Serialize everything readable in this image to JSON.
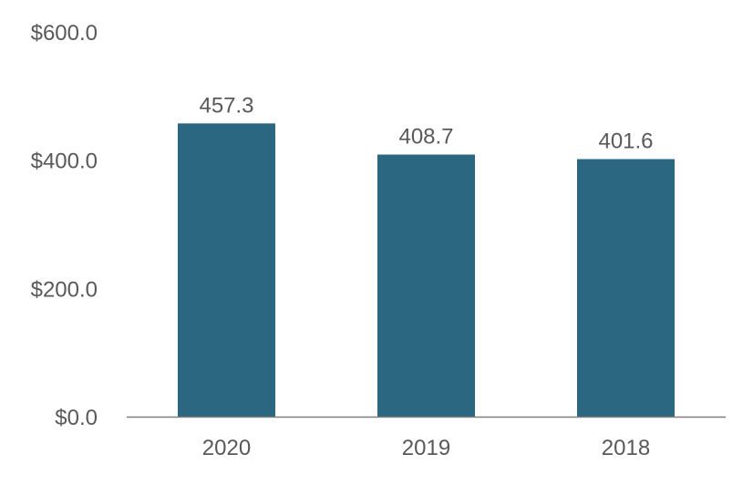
{
  "chart_data": {
    "type": "bar",
    "categories": [
      "2020",
      "2019",
      "2018"
    ],
    "values": [
      457.3,
      408.7,
      401.6
    ],
    "data_labels": [
      "457.3",
      "408.7",
      "401.6"
    ],
    "y_ticks": [
      0,
      200,
      400,
      600
    ],
    "y_tick_labels": [
      "$0.0",
      "$200.0",
      "$400.0",
      "$600.0"
    ],
    "ylim": [
      0,
      600
    ],
    "grid": false,
    "legend": "none",
    "title": "",
    "xlabel": "",
    "ylabel": ""
  },
  "colors": {
    "bar": "#2b6781",
    "axis": "#7f7f7f",
    "text": "#595959"
  }
}
